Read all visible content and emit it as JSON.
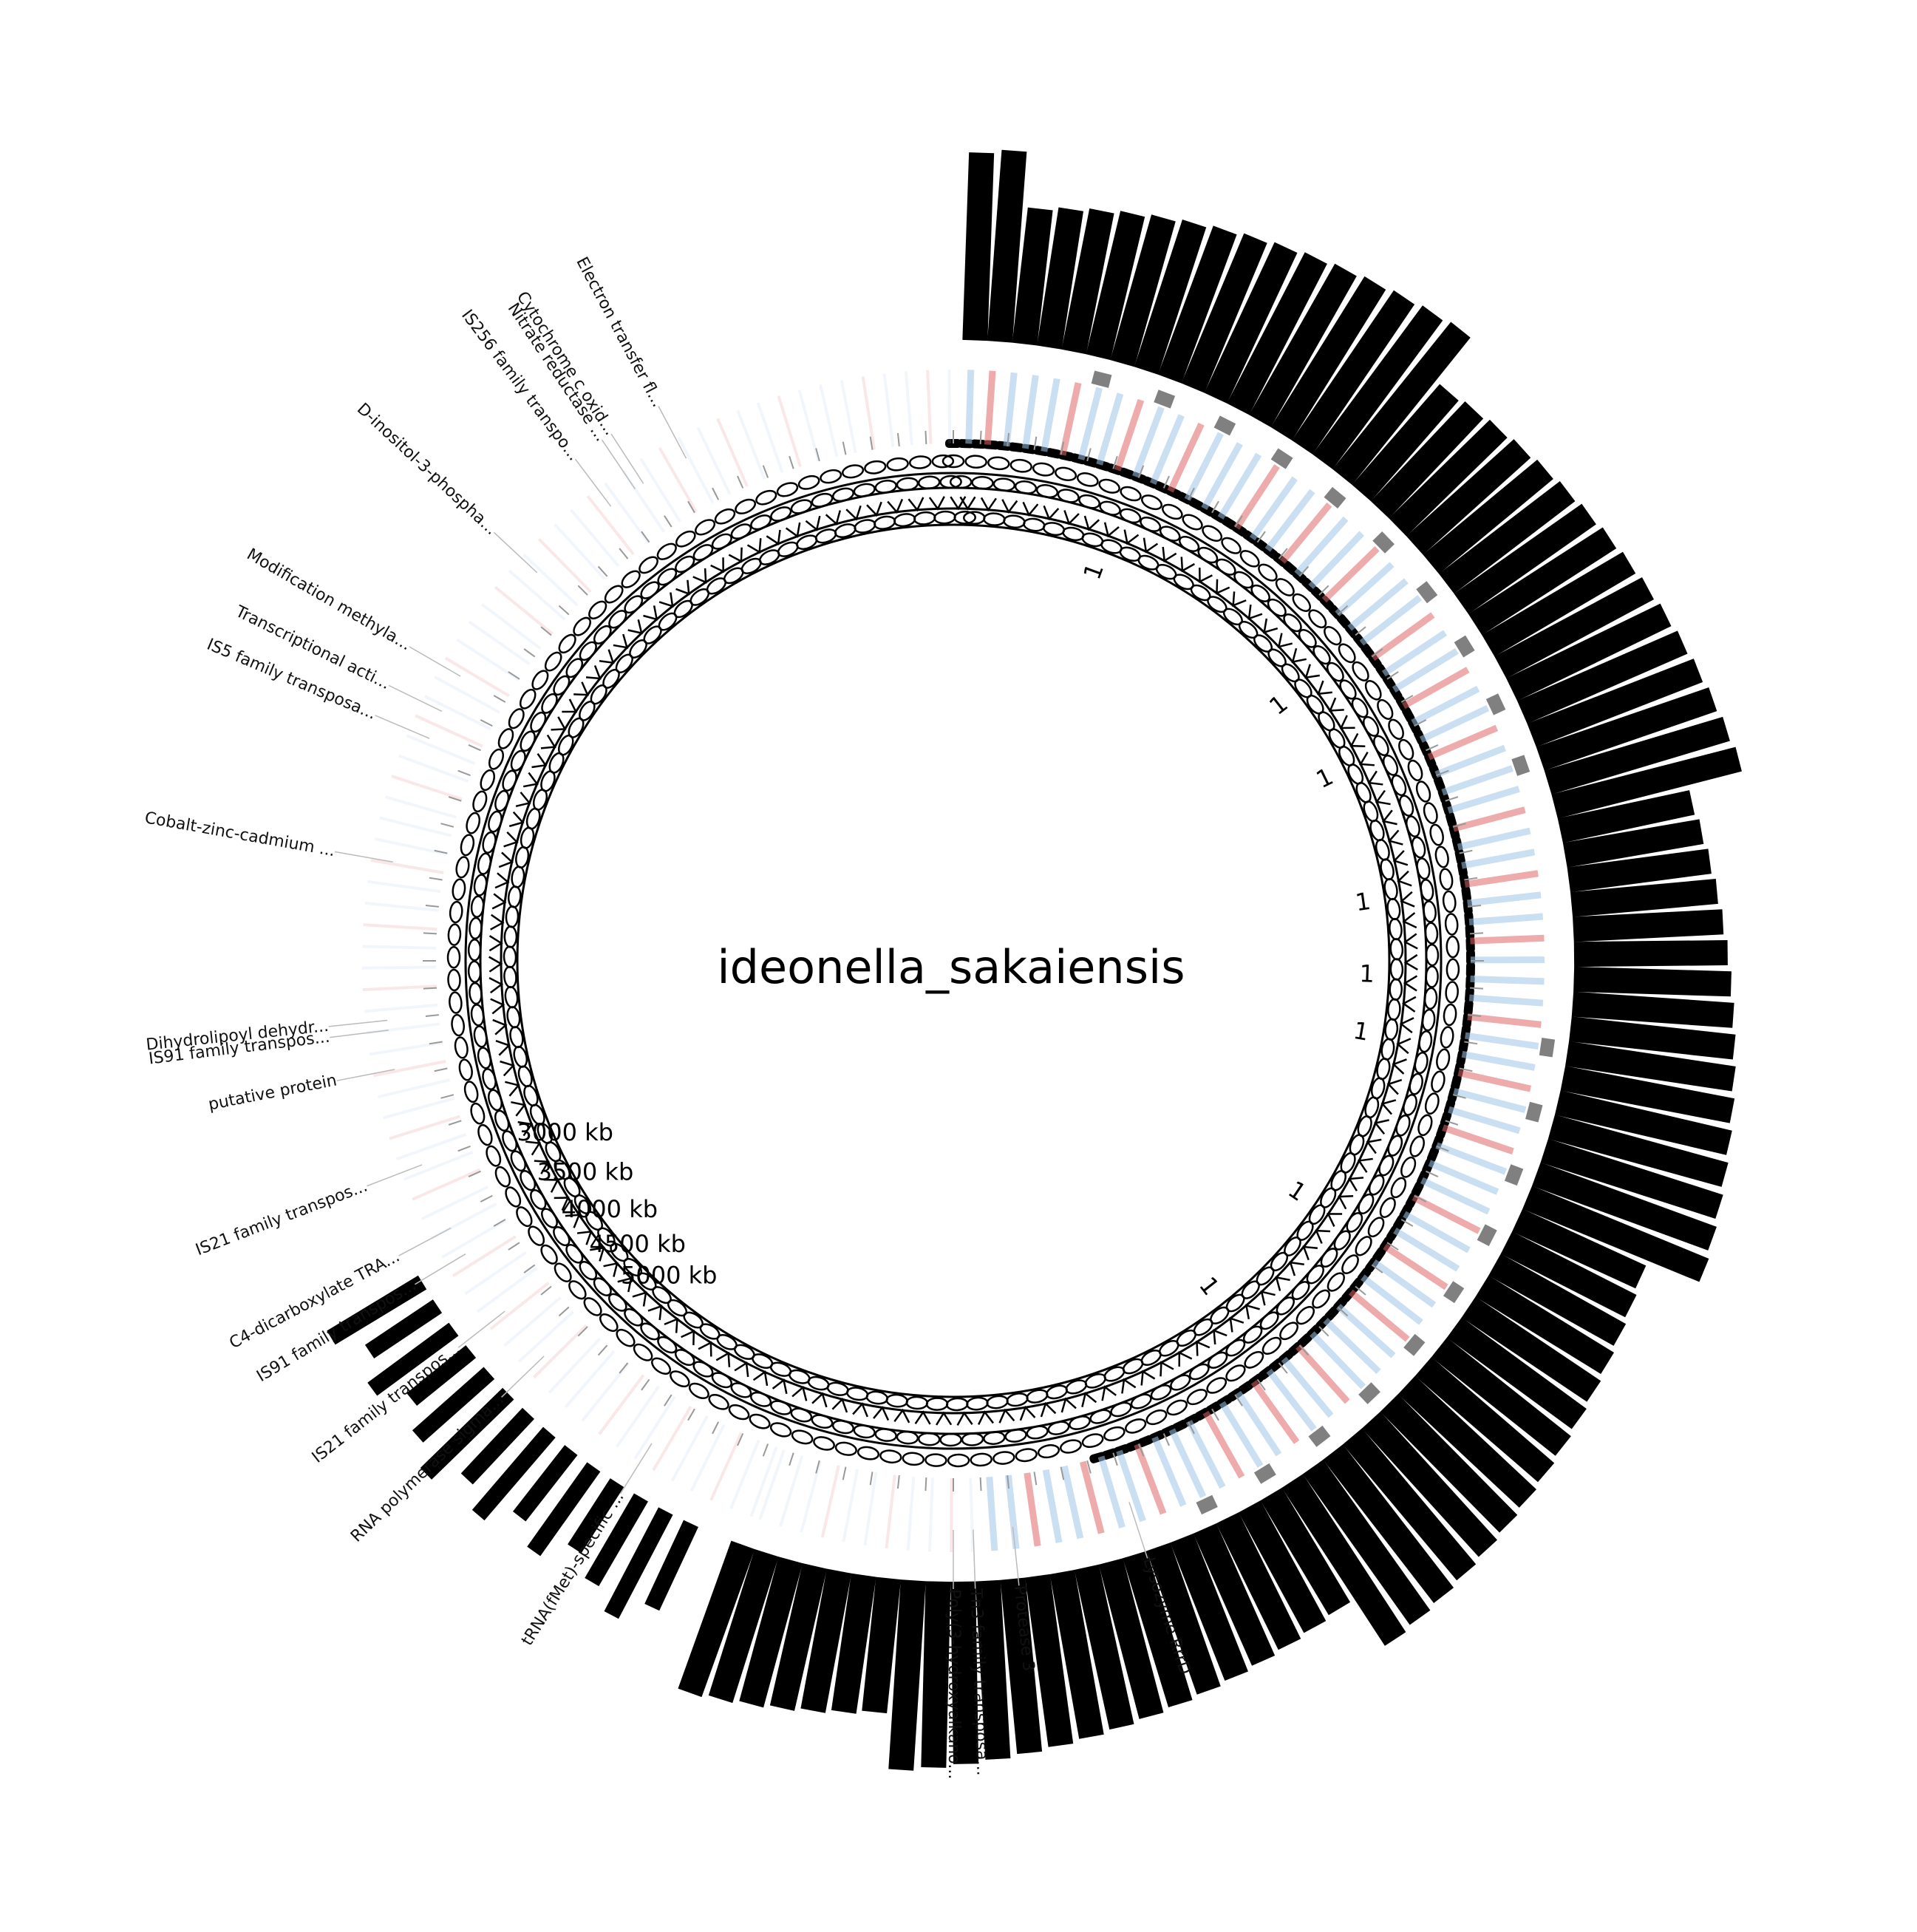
{
  "title": "ideonella_sakaiensis",
  "colors": {
    "feature": "#000000",
    "gc_high": "#e06666",
    "gc_low": "#9fc5e8",
    "skew_box": "#808080",
    "tick": "#999999"
  },
  "position_labels": [
    "3000 kb",
    "3500 kb",
    "4000 kb",
    "4500 kb",
    "5000 kb"
  ],
  "gene_labels": [
    {
      "text": "Electron transfer fl...",
      "angle": -28
    },
    {
      "text": "IS256 family transpo...",
      "angle": -37
    },
    {
      "text": "Nitrate reductase ...",
      "angle": -34
    },
    {
      "text": "Cytochrome c oxid...",
      "angle": -33
    },
    {
      "text": "D-inositol-3-phospha...",
      "angle": -47
    },
    {
      "text": "Modification methyla...",
      "angle": -60
    },
    {
      "text": "Transcriptional acti...",
      "angle": -64
    },
    {
      "text": "IS5 family transposa...",
      "angle": -67
    },
    {
      "text": "Cobalt-zinc-cadmium ...",
      "angle": -80
    },
    {
      "text": "Dihydrolipoyl dehydr...",
      "angle": -96
    },
    {
      "text": "IS91 family transpos...",
      "angle": -97
    },
    {
      "text": "putative protein",
      "angle": -101
    },
    {
      "text": "IS21 family transpos...",
      "angle": -111
    },
    {
      "text": "C4-dicarboxylate TRA...",
      "angle": -118
    },
    {
      "text": "IS91 family transpos...",
      "angle": -121
    },
    {
      "text": "IS21 family transpos...",
      "angle": -128
    },
    {
      "text": "RNA polymerase sigma...",
      "angle": -134
    },
    {
      "text": "tRNA(fMet)-specific ...",
      "angle": -148
    },
    {
      "text": "Lysozyme RrrD",
      "angle": 162
    },
    {
      "text": "Tn3 family transposa...",
      "angle": 178
    },
    {
      "text": "Poly(3-hydroxyalkano...",
      "angle": 180
    },
    {
      "text": "Protease 3",
      "angle": 174
    }
  ],
  "center_labels": [
    {
      "text": "1",
      "angle": 20
    },
    {
      "text": "1",
      "angle": 52
    },
    {
      "text": "1",
      "angle": 64
    },
    {
      "text": "1",
      "angle": 82
    },
    {
      "text": "1",
      "angle": 92
    },
    {
      "text": "1",
      "angle": 100
    },
    {
      "text": "1",
      "angle": 124
    },
    {
      "text": "1",
      "angle": 142
    }
  ]
}
